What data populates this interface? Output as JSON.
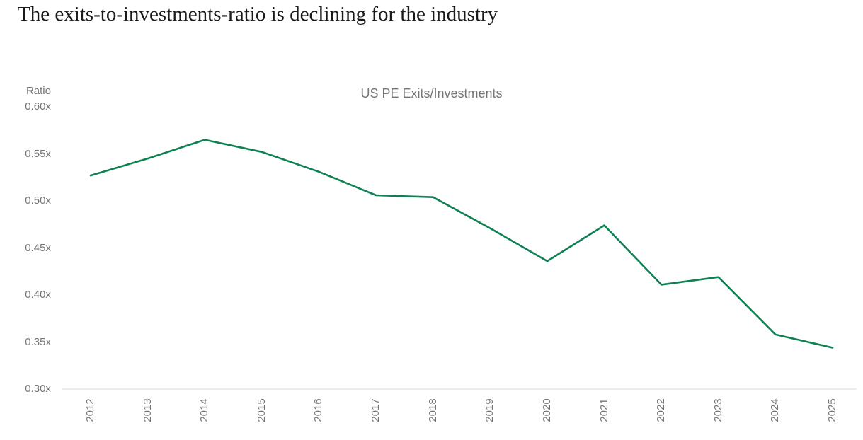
{
  "page": {
    "title": "The exits-to-investments-ratio is declining for the industry"
  },
  "chart": {
    "line_color": "#0e8152",
    "axis_line_color": "#d9d9d9",
    "text_color": "#757575"
  },
  "chart_data": {
    "type": "line",
    "title": "US PE Exits/Investments",
    "xlabel": "",
    "ylabel": "Ratio",
    "x": [
      "2012",
      "2013",
      "2014",
      "2015",
      "2016",
      "2017",
      "2018",
      "2019",
      "2020",
      "2021",
      "2022",
      "2023",
      "2024",
      "2025"
    ],
    "values": [
      0.527,
      0.545,
      0.565,
      0.552,
      0.531,
      0.506,
      0.504,
      0.471,
      0.436,
      0.474,
      0.411,
      0.419,
      0.358,
      0.344
    ],
    "ylim": [
      0.3,
      0.6
    ],
    "ytick_values": [
      0.6,
      0.55,
      0.5,
      0.45,
      0.4,
      0.35,
      0.3
    ],
    "ytick_labels": [
      "0.60x",
      "0.55x",
      "0.50x",
      "0.45x",
      "0.40x",
      "0.35x",
      "0.30x"
    ],
    "grid": false,
    "legend": false
  }
}
